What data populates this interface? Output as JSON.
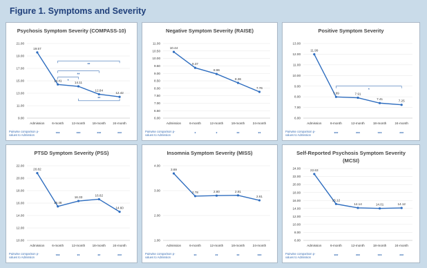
{
  "figure_title": "Figure 1. Symptoms and Severity",
  "comparison_label_line1": "Pairwise comparison p-",
  "comparison_label_line2": "values to Admission",
  "colors": {
    "line": "#2e6dbf",
    "bracket": "#3a6fb5",
    "background": "#c9dbe9",
    "title": "#1f3f7a"
  },
  "chart_data": [
    {
      "type": "line",
      "title": "Psychosis Symptom Severity (COMPASS-10)",
      "categories": [
        "Admission",
        "6-month",
        "12-month",
        "18-month",
        "24-month"
      ],
      "values": [
        19.57,
        14.41,
        14.11,
        12.84,
        12.42
      ],
      "ylim": [
        9.0,
        21.0
      ],
      "yticks": [
        "9.00",
        "11.00",
        "13.00",
        "15.00",
        "17.00",
        "19.00",
        "21.00"
      ],
      "comparisons": [
        "",
        "***",
        "***",
        "***",
        "***"
      ],
      "annotations": [
        "**",
        "**",
        "*",
        "**"
      ]
    },
    {
      "type": "line",
      "title": "Negative Symptom Severity (RAISE)",
      "categories": [
        "Admission",
        "6-month",
        "12-month",
        "18-month",
        "24-month"
      ],
      "values": [
        10.44,
        9.37,
        8.96,
        8.36,
        7.76
      ],
      "ylim": [
        6.0,
        11.0
      ],
      "yticks": [
        "6.00",
        "6.50",
        "7.00",
        "7.50",
        "8.00",
        "8.50",
        "9.00",
        "9.50",
        "10.00",
        "10.50",
        "11.00"
      ],
      "comparisons": [
        "",
        "*",
        "*",
        "**",
        "**"
      ],
      "annotations": []
    },
    {
      "type": "line",
      "title": "Positive Symptom Severity",
      "categories": [
        "Admission",
        "6-month",
        "12-month",
        "18-month",
        "24-month"
      ],
      "values": [
        11.99,
        7.99,
        7.91,
        7.41,
        7.25
      ],
      "ylim": [
        6.0,
        13.0
      ],
      "yticks": [
        "6.00",
        "7.00",
        "8.00",
        "9.00",
        "10.00",
        "11.00",
        "12.00",
        "13.00"
      ],
      "comparisons": [
        "",
        "***",
        "***",
        "***",
        "***"
      ],
      "annotations": [
        "*"
      ]
    },
    {
      "type": "line",
      "title": "PTSD Symptom Severity (PSS)",
      "categories": [
        "Admission",
        "6-month",
        "12-month",
        "18-month",
        "24-month"
      ],
      "values": [
        20.82,
        15.46,
        16.33,
        16.62,
        14.6
      ],
      "ylim": [
        10.0,
        22.0
      ],
      "yticks": [
        "10.00",
        "12.00",
        "14.00",
        "16.00",
        "18.00",
        "20.00",
        "22.00"
      ],
      "comparisons": [
        "",
        "***",
        "**",
        "**",
        "***"
      ],
      "annotations": []
    },
    {
      "type": "line",
      "title": "Insomnia Symptom Severity (MISS)",
      "categories": [
        "Admission",
        "6-month",
        "12-month",
        "18-month",
        "24-month"
      ],
      "values": [
        3.69,
        2.78,
        2.8,
        2.81,
        2.61
      ],
      "ylim": [
        1.0,
        4.0
      ],
      "yticks": [
        "1.00",
        "2.00",
        "3.00",
        "4.00"
      ],
      "comparisons": [
        "",
        "**",
        "**",
        "**",
        "***"
      ],
      "annotations": []
    },
    {
      "type": "line",
      "title": "Self-Reported Psychosis Symptom Severity (MCSI)",
      "title_lines": [
        "Self-Reported Psychosis Symptom Severity",
        "(MCSI)"
      ],
      "categories": [
        "Admission",
        "6-month",
        "12-month",
        "18-month",
        "24-month"
      ],
      "values": [
        22.63,
        15.12,
        14.14,
        14.01,
        14.12
      ],
      "ylim": [
        6.0,
        24.0
      ],
      "yticks": [
        "6.00",
        "8.00",
        "10.00",
        "12.00",
        "14.00",
        "16.00",
        "18.00",
        "20.00",
        "22.00",
        "24.00"
      ],
      "comparisons": [
        "",
        "***",
        "***",
        "***",
        "***"
      ],
      "annotations": []
    }
  ]
}
